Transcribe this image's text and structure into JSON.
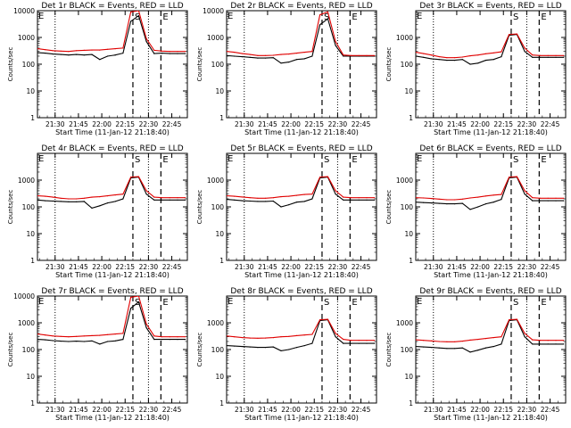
{
  "chart_data": {
    "type": "line",
    "layout": "3x3 grid of panels",
    "y_scale": "log",
    "ylim": [
      1,
      10000
    ],
    "xlim": [
      "21:18:40",
      "22:55"
    ],
    "x_tick_labels": [
      "21:30",
      "21:45",
      "22:00",
      "22:15",
      "22:30",
      "22:45"
    ],
    "ylabel": "Counts/sec",
    "xlabel": "Start Time (11-Jan-12 21:18:40)",
    "grid": false,
    "dotted_lines_at": [
      "21:30",
      "22:30"
    ],
    "dashed_lines_at": [
      "22:20",
      "22:38"
    ],
    "markers": [
      "S",
      "E"
    ],
    "colors": {
      "events": "#000000",
      "lld": "#e00000"
    },
    "x_minutes_from_start": [
      0,
      5,
      10,
      15,
      20,
      25,
      30,
      35,
      40,
      45,
      50,
      55,
      60,
      65,
      70,
      75,
      80,
      85,
      90,
      95
    ],
    "panels": [
      {
        "title": "Det 1r BLACK = Events, RED = LLD",
        "y_tick_labels": [
          "1",
          "10",
          "100",
          "1000",
          "10000"
        ],
        "series": [
          {
            "name": "Events",
            "values": [
              270,
              260,
              240,
              230,
              220,
              230,
              220,
              230,
              150,
              200,
              220,
              260,
              4000,
              6500,
              700,
              250,
              260,
              250,
              250,
              250
            ]
          },
          {
            "name": "LLD",
            "values": [
              380,
              350,
              320,
              310,
              300,
              320,
              330,
              340,
              340,
              360,
              380,
              400,
              9000,
              12000,
              900,
              330,
              310,
              300,
              300,
              300
            ]
          }
        ]
      },
      {
        "title": "Det 2r BLACK = Events, RED = LLD",
        "y_tick_labels": [
          "1",
          "10",
          "100",
          "1000",
          "10000"
        ],
        "series": [
          {
            "name": "Events",
            "values": [
              210,
              200,
              190,
              180,
              170,
              170,
              175,
              110,
              120,
              150,
              160,
              200,
              3000,
              5000,
              500,
              200,
              200,
              200,
              200,
              200
            ]
          },
          {
            "name": "LLD",
            "values": [
              300,
              280,
              250,
              230,
              210,
              210,
              215,
              230,
              240,
              260,
              280,
              300,
              7000,
              9000,
              700,
              220,
              210,
              210,
              210,
              210
            ]
          }
        ]
      },
      {
        "title": "Det 3r BLACK = Events, RED = LLD",
        "y_tick_labels": [
          "1",
          "10",
          "100",
          "1000"
        ],
        "series": [
          {
            "name": "Events",
            "values": [
              200,
              180,
              160,
              150,
              140,
              140,
              150,
              100,
              110,
              140,
              150,
              190,
              1200,
              1300,
              300,
              180,
              180,
              180,
              180,
              180
            ]
          },
          {
            "name": "LLD",
            "values": [
              280,
              250,
              220,
              190,
              175,
              175,
              185,
              205,
              220,
              245,
              265,
              290,
              1300,
              1350,
              400,
              220,
              210,
              210,
              210,
              210
            ]
          }
        ]
      },
      {
        "title": "Det 4r BLACK = Events, RED = LLD",
        "y_tick_labels": [
          "1",
          "10",
          "100",
          "1000"
        ],
        "series": [
          {
            "name": "Events",
            "values": [
              180,
              170,
              165,
              160,
              155,
              155,
              160,
              90,
              110,
              140,
              160,
              200,
              1200,
              1300,
              300,
              180,
              180,
              180,
              180,
              180
            ]
          },
          {
            "name": "LLD",
            "values": [
              260,
              250,
              230,
              210,
              200,
              200,
              210,
              230,
              240,
              260,
              280,
              300,
              1300,
              1350,
              400,
              230,
              220,
              220,
              220,
              220
            ]
          }
        ]
      },
      {
        "title": "Det 5r BLACK = Events, RED = LLD",
        "y_tick_labels": [
          "1",
          "10",
          "100",
          "1000"
        ],
        "series": [
          {
            "name": "Events",
            "values": [
              190,
              180,
              170,
              165,
              160,
              160,
              165,
              100,
              120,
              150,
              160,
              200,
              1200,
              1300,
              300,
              180,
              180,
              180,
              180,
              180
            ]
          },
          {
            "name": "LLD",
            "values": [
              260,
              250,
              235,
              220,
              210,
              210,
              220,
              240,
              250,
              270,
              290,
              300,
              1300,
              1350,
              400,
              230,
              220,
              220,
              220,
              220
            ]
          }
        ]
      },
      {
        "title": "Det 6r BLACK = Events, RED = LLD",
        "y_tick_labels": [
          "1",
          "10",
          "100",
          "1000"
        ],
        "series": [
          {
            "name": "Events",
            "values": [
              150,
              145,
              140,
              135,
              130,
              130,
              135,
              80,
              100,
              130,
              150,
              190,
              1200,
              1300,
              300,
              170,
              170,
              170,
              170,
              170
            ]
          },
          {
            "name": "LLD",
            "values": [
              220,
              215,
              205,
              195,
              185,
              185,
              195,
              215,
              230,
              255,
              275,
              290,
              1300,
              1350,
              400,
              220,
              210,
              210,
              210,
              210
            ]
          }
        ]
      },
      {
        "title": "Det 7r BLACK = Events, RED = LLD",
        "y_tick_labels": [
          "1",
          "10",
          "100",
          "1000",
          "10000"
        ],
        "series": [
          {
            "name": "Events",
            "values": [
              240,
              230,
              215,
              205,
              200,
              205,
              200,
              210,
              160,
              200,
              210,
              240,
              3500,
              6000,
              650,
              240,
              240,
              240,
              240,
              240
            ]
          },
          {
            "name": "LLD",
            "values": [
              380,
              350,
              320,
              310,
              300,
              310,
              320,
              330,
              340,
              360,
              380,
              400,
              9000,
              12000,
              900,
              320,
              300,
              300,
              300,
              300
            ]
          }
        ]
      },
      {
        "title": "Det 8r BLACK = Events, RED = LLD",
        "y_tick_labels": [
          "1",
          "10",
          "100",
          "1000"
        ],
        "series": [
          {
            "name": "Events",
            "values": [
              140,
              135,
              130,
              125,
              120,
              120,
              125,
              90,
              100,
              120,
              140,
              170,
              1200,
              1300,
              300,
              170,
              170,
              170,
              170,
              170
            ]
          },
          {
            "name": "LLD",
            "values": [
              320,
              300,
              280,
              270,
              265,
              270,
              280,
              300,
              310,
              330,
              350,
              370,
              1300,
              1350,
              400,
              240,
              220,
              220,
              220,
              220
            ]
          }
        ]
      },
      {
        "title": "Det 9r BLACK = Events, RED = LLD",
        "y_tick_labels": [
          "1",
          "10",
          "100",
          "1000"
        ],
        "series": [
          {
            "name": "Events",
            "values": [
              130,
              125,
              120,
              115,
              110,
              110,
              115,
              80,
              95,
              115,
              130,
              160,
              1200,
              1300,
              300,
              160,
              160,
              160,
              160,
              160
            ]
          },
          {
            "name": "LLD",
            "values": [
              230,
              220,
              210,
              200,
              195,
              195,
              205,
              225,
              240,
              260,
              280,
              300,
              1300,
              1350,
              400,
              230,
              220,
              220,
              220,
              220
            ]
          }
        ]
      }
    ]
  }
}
